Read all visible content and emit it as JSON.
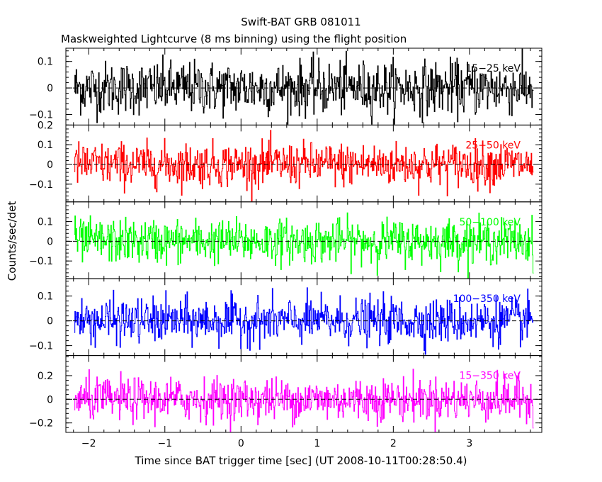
{
  "chart_data": {
    "type": "line",
    "title": "Swift-BAT GRB 081011",
    "subtitle": "Maskweighted Lightcurve (8 ms binning) using the flight position",
    "xlabel": "Time since BAT trigger time [sec] (UT 2008-10-11T00:28:50.4)",
    "ylabel": "Counts/sec/det",
    "xlim": [
      -2.3,
      3.95
    ],
    "x_ticks": [
      -2,
      -1,
      0,
      1,
      2,
      3
    ],
    "x_tick_labels": [
      "−2",
      "−1",
      "0",
      "1",
      "2",
      "3"
    ],
    "data_range": [
      -2.19,
      3.84
    ],
    "bin_size": 0.008,
    "grid": false,
    "zero_line": "dashed",
    "panels": [
      {
        "name": "15-25 keV",
        "color": "#000000",
        "ylim": [
          -0.14,
          0.15
        ],
        "y_ticks": [
          0.1,
          0,
          -0.1
        ],
        "y_tick_labels": [
          "0.1",
          "0",
          "−0.1"
        ],
        "noise_sigma": 0.05,
        "label": "15−25 keV"
      },
      {
        "name": "25-50 keV",
        "color": "#ff0000",
        "ylim": [
          -0.19,
          0.2
        ],
        "y_ticks": [
          0.2,
          0.1,
          0,
          -0.1
        ],
        "y_tick_labels": [
          "0.2",
          "0.1",
          "0",
          "−0.1"
        ],
        "noise_sigma": 0.055,
        "label": "25−50 keV"
      },
      {
        "name": "50-100 keV",
        "color": "#00ff00",
        "ylim": [
          -0.19,
          0.2
        ],
        "y_ticks": [
          0.1,
          0,
          -0.1
        ],
        "y_tick_labels": [
          "0.1",
          "0",
          "−0.1"
        ],
        "noise_sigma": 0.055,
        "label": "50−100 keV"
      },
      {
        "name": "100-350 keV",
        "color": "#0000ff",
        "ylim": [
          -0.14,
          0.17
        ],
        "y_ticks": [
          0.1,
          0,
          -0.1
        ],
        "y_tick_labels": [
          "0.1",
          "0",
          "−0.1"
        ],
        "noise_sigma": 0.045,
        "label": "100−350 keV"
      },
      {
        "name": "15-350 keV",
        "color": "#ff00ff",
        "ylim": [
          -0.28,
          0.37
        ],
        "y_ticks": [
          0.2,
          0,
          -0.2
        ],
        "y_tick_labels": [
          "0.2",
          "0",
          "−0.2"
        ],
        "noise_sigma": 0.09,
        "label": "15−350 keV"
      }
    ]
  }
}
